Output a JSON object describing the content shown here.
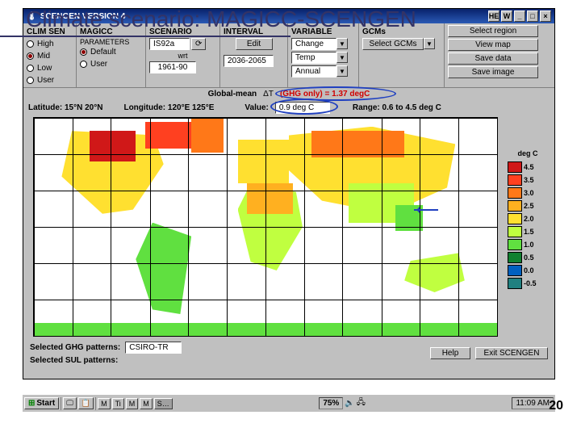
{
  "slide": {
    "title": "Climate scenario: MAGICC-SCENGEN",
    "page_number": "20"
  },
  "window": {
    "title": "SCENGEN VERSION 4",
    "min": "_",
    "max": "□",
    "close": "×",
    "he": "HE",
    "w": "W"
  },
  "cols": {
    "climsen": {
      "head": "CLIM SEN",
      "opts": [
        "High",
        "Mid",
        "Low",
        "User"
      ],
      "selected": 1
    },
    "magicc": {
      "head": "MAGICC",
      "sub": "PARAMETERS",
      "opts": [
        "Default",
        "User"
      ],
      "selected": 0
    },
    "scenario": {
      "head": "SCENARIO",
      "value": "IS92a",
      "wrt": "wrt",
      "base": "1961-90",
      "refresh": "⟳"
    },
    "interval": {
      "head": "INTERVAL",
      "edit": "Edit",
      "value": "2036-2065"
    },
    "variable": {
      "head": "VARIABLE",
      "v1": "Change",
      "v2": "Temp",
      "v3": "Annual"
    },
    "gcms": {
      "head": "GCMs",
      "btn": "Select GCMs"
    },
    "actions": {
      "head": "Select region",
      "b1": "View map",
      "b2": "Save data",
      "b3": "Save image"
    }
  },
  "info": {
    "global_label": "Global-mean",
    "dt": "ΔT",
    "ghg": "(GHG only)",
    "eq": " = 1.37 degC",
    "lat": "Latitude: 15°N  20°N",
    "lon": "Longitude: 120°E  125°E",
    "val_label": "Value:",
    "val": "0.9 deg C",
    "range": "Range: 0.6 to 4.5 deg C"
  },
  "map": {
    "vlines": [
      0,
      8.3,
      16.6,
      25,
      33.3,
      41.6,
      50,
      58.3,
      66.6,
      75,
      83.3,
      91.6,
      100
    ],
    "hlines": [
      0,
      16.6,
      33.3,
      50,
      66.6,
      83.3,
      100
    ],
    "legend_title": "deg C",
    "legend": [
      {
        "c": "#d01818",
        "l": "4.5"
      },
      {
        "c": "#ff4020",
        "l": "3.5"
      },
      {
        "c": "#ff7818",
        "l": "3.0"
      },
      {
        "c": "#ffb020",
        "l": "2.5"
      },
      {
        "c": "#ffe030",
        "l": "2.0"
      },
      {
        "c": "#c0ff40",
        "l": "1.5"
      },
      {
        "c": "#60e040",
        "l": "1.0"
      },
      {
        "c": "#108030",
        "l": "0.5"
      },
      {
        "c": "#0060c0",
        "l": "0.0"
      },
      {
        "c": "#208080",
        "l": "-0.5"
      }
    ]
  },
  "bottom": {
    "ghg": "Selected GHG patterns:",
    "ghg_val": "CSIRO-TR",
    "sul": "Selected SUL patterns:",
    "help": "Help",
    "exit": "Exit SCENGEN"
  },
  "taskbar": {
    "start": "Start",
    "items": [
      "M",
      "Ti",
      "M",
      "M",
      "S…"
    ],
    "zoom": "75%",
    "clock": "11:09 AM"
  }
}
